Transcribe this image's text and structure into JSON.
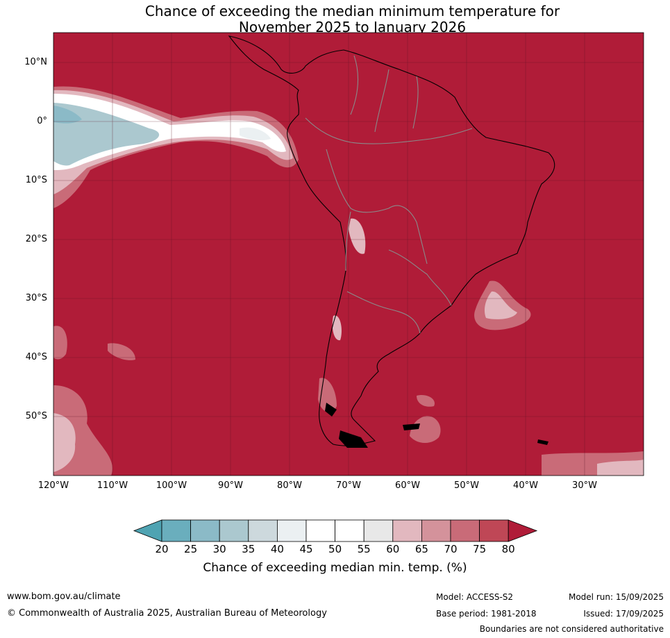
{
  "title": {
    "line1": "Chance of exceeding the median minimum temperature for",
    "line2": "November 2025 to January 2026"
  },
  "map": {
    "region": "South America",
    "lat_labels": [
      "10°N",
      "0°",
      "10°S",
      "20°S",
      "30°S",
      "40°S",
      "50°S"
    ],
    "lon_labels": [
      "120°W",
      "110°W",
      "100°W",
      "90°W",
      "80°W",
      "70°W",
      "60°W",
      "50°W",
      "40°W",
      "30°W"
    ],
    "dominant_category": "80",
    "gridlines": true
  },
  "colorbar": {
    "ticks": [
      "20",
      "25",
      "30",
      "35",
      "40",
      "45",
      "50",
      "55",
      "60",
      "65",
      "70",
      "75",
      "80"
    ],
    "colors": [
      "#4fa3b2",
      "#6aaebd",
      "#8bbac7",
      "#abc8cf",
      "#cdd9dd",
      "#ebf0f2",
      "#ffffff",
      "#ffffff",
      "#e8e8e8",
      "#e2b8bf",
      "#d4929b",
      "#c96b78",
      "#bf4756",
      "#b01c38"
    ],
    "label": "Chance of exceeding median min. temp. (%)"
  },
  "footer": {
    "website": "www.bom.gov.au/climate",
    "copyright": "© Commonwealth of Australia 2025, Australian Bureau of Meteorology",
    "model": "Model: ACCESS-S2",
    "base_period": "Base period: 1981-2018",
    "model_run": "Model run: 15/09/2025",
    "issued": "Issued: 17/09/2025",
    "disclaimer": "Boundaries are not considered authoritative"
  }
}
